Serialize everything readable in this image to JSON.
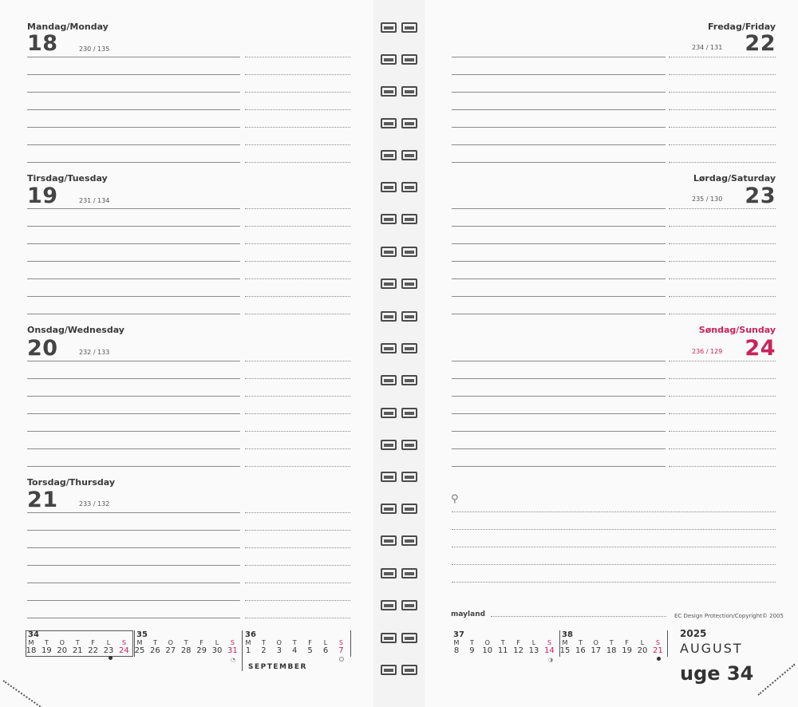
{
  "left_page": {
    "days": [
      {
        "name": "Mandag/Monday",
        "number": "18",
        "seq": "230 / 135"
      },
      {
        "name": "Tirsdag/Tuesday",
        "number": "19",
        "seq": "231 / 134"
      },
      {
        "name": "Onsdag/Wednesday",
        "number": "20",
        "seq": "232 / 133"
      },
      {
        "name": "Torsdag/Thursday",
        "number": "21",
        "seq": "233 / 132"
      }
    ]
  },
  "right_page": {
    "days": [
      {
        "name": "Fredag/Friday",
        "number": "22",
        "seq": "234 / 131"
      },
      {
        "name": "Lørdag/Saturday",
        "number": "23",
        "seq": "235 / 130"
      },
      {
        "name": "Søndag/Sunday",
        "number": "24",
        "seq": "236 / 129"
      }
    ],
    "brand": "mayland",
    "copyright": "EC Design Protection/Copyright© 2005",
    "year": "2025",
    "month": "AUGUST",
    "week": "uge 34"
  },
  "mini_calendar_left": {
    "weekday_letters": [
      "M",
      "T",
      "O",
      "T",
      "F",
      "L",
      "S"
    ],
    "weeks": [
      {
        "number": "34",
        "days": [
          "18",
          "19",
          "20",
          "21",
          "22",
          "23",
          "24"
        ]
      },
      {
        "number": "35",
        "days": [
          "25",
          "26",
          "27",
          "28",
          "29",
          "30",
          "31"
        ]
      },
      {
        "number": "36",
        "days": [
          "1",
          "2",
          "3",
          "4",
          "5",
          "6",
          "7"
        ]
      }
    ],
    "month_label": "SEPTEMBER"
  },
  "mini_calendar_right": {
    "weekday_letters": [
      "M",
      "T",
      "O",
      "T",
      "F",
      "L",
      "S"
    ],
    "weeks": [
      {
        "number": "37",
        "days": [
          "8",
          "9",
          "10",
          "11",
          "12",
          "13",
          "14"
        ]
      },
      {
        "number": "38",
        "days": [
          "15",
          "16",
          "17",
          "18",
          "19",
          "20",
          "21"
        ]
      }
    ]
  },
  "colors": {
    "sunday": "#c8235a",
    "text": "#3a3a3a",
    "paper": "#fafafa"
  }
}
